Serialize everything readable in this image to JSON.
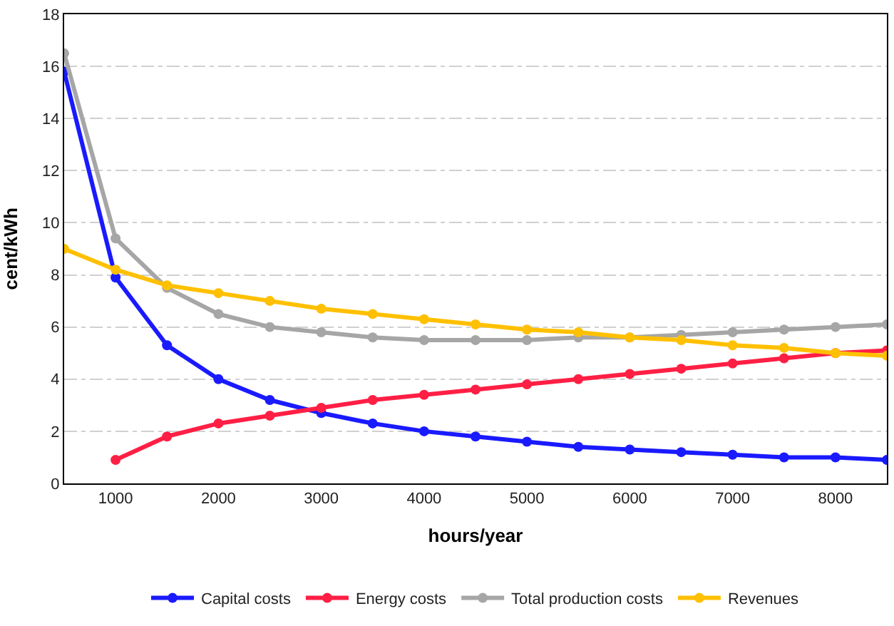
{
  "chart_data": {
    "type": "line",
    "xlabel": "hours/year",
    "ylabel": "cent/kWh",
    "x": [
      500,
      1000,
      1500,
      2000,
      2500,
      3000,
      3500,
      4000,
      4500,
      5000,
      5500,
      6000,
      6500,
      7000,
      7500,
      8000,
      8500
    ],
    "series": [
      {
        "name": "Capital costs",
        "color": "#1a1aff",
        "values": [
          15.8,
          7.9,
          5.3,
          4.0,
          3.2,
          2.7,
          2.3,
          2.0,
          1.8,
          1.6,
          1.4,
          1.3,
          1.2,
          1.1,
          1.0,
          1.0,
          0.9
        ]
      },
      {
        "name": "Energy costs",
        "color": "#ff1f44",
        "values": [
          null,
          0.9,
          1.8,
          2.3,
          2.6,
          2.9,
          3.2,
          3.4,
          3.6,
          3.8,
          4.0,
          4.2,
          4.4,
          4.6,
          4.8,
          5.0,
          5.1
        ]
      },
      {
        "name": "Total production costs",
        "color": "#a6a6a6",
        "values": [
          16.5,
          9.4,
          7.5,
          6.5,
          6.0,
          5.8,
          5.6,
          5.5,
          5.5,
          5.5,
          5.6,
          5.6,
          5.7,
          5.8,
          5.9,
          6.0,
          6.1
        ]
      },
      {
        "name": "Revenues",
        "color": "#ffc000",
        "values": [
          9.0,
          8.2,
          7.6,
          7.3,
          7.0,
          6.7,
          6.5,
          6.3,
          6.1,
          5.9,
          5.8,
          5.6,
          5.5,
          5.3,
          5.2,
          5.0,
          4.9
        ]
      }
    ],
    "xlim": [
      500,
      8500
    ],
    "xticks": [
      1000,
      2000,
      3000,
      4000,
      5000,
      6000,
      7000,
      8000
    ],
    "ylim": [
      0,
      18
    ],
    "yticks": [
      0,
      2,
      4,
      6,
      8,
      10,
      12,
      14,
      16,
      18
    ],
    "grid": "y",
    "legend": "bottom",
    "marker": "circle",
    "line_style": "solid"
  }
}
